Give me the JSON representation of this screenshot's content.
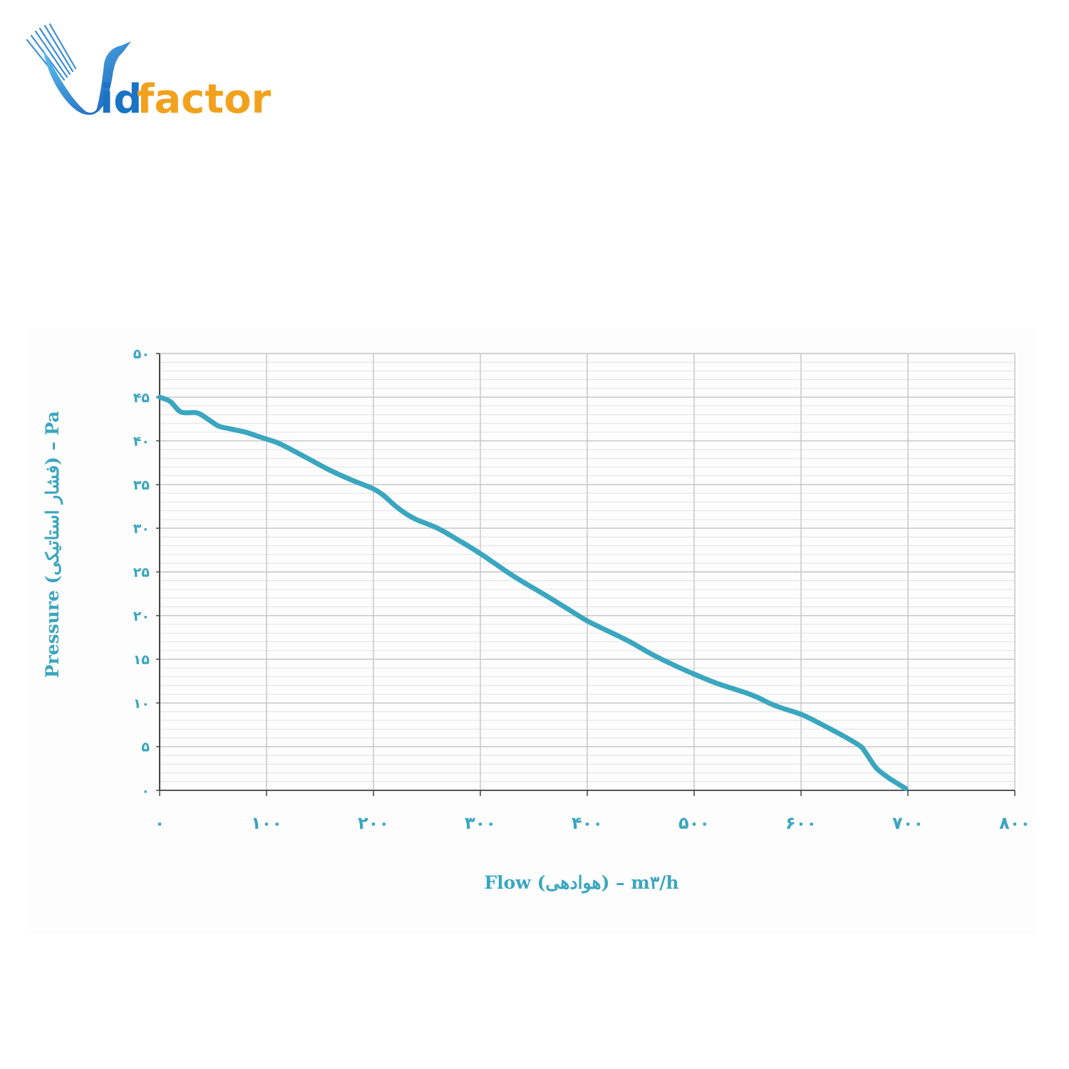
{
  "logo": {
    "text_v": "V",
    "text_id": "id",
    "text_factor": "factor",
    "colors": {
      "blue": "#1a73c4",
      "orange": "#f2a11c"
    }
  },
  "chart_data": {
    "type": "line",
    "title": "",
    "xlabel": "Flow (هوادهی) – m۳/h",
    "ylabel": "Pressure (فشار استاتیکی) – Pa",
    "xlim": [
      0,
      800
    ],
    "ylim": [
      0,
      50
    ],
    "x_ticks": [
      {
        "value": 0,
        "label": "۰"
      },
      {
        "value": 100,
        "label": "۱۰۰"
      },
      {
        "value": 200,
        "label": "۲۰۰"
      },
      {
        "value": 300,
        "label": "۳۰۰"
      },
      {
        "value": 400,
        "label": "۴۰۰"
      },
      {
        "value": 500,
        "label": "۵۰۰"
      },
      {
        "value": 600,
        "label": "۶۰۰"
      },
      {
        "value": 700,
        "label": "۷۰۰"
      },
      {
        "value": 800,
        "label": "۸۰۰"
      }
    ],
    "y_ticks": [
      {
        "value": 0,
        "label": "۰"
      },
      {
        "value": 5,
        "label": "۵"
      },
      {
        "value": 10,
        "label": "۱۰"
      },
      {
        "value": 15,
        "label": "۱۵"
      },
      {
        "value": 20,
        "label": "۲۰"
      },
      {
        "value": 25,
        "label": "۲۵"
      },
      {
        "value": 30,
        "label": "۳۰"
      },
      {
        "value": 35,
        "label": "۳۵"
      },
      {
        "value": 40,
        "label": "۴۰"
      },
      {
        "value": 45,
        "label": "۴۵"
      },
      {
        "value": 50,
        "label": "۵۰"
      }
    ],
    "grid": true,
    "minor_y_step": 1,
    "series": [
      {
        "color": "#3aa6bf",
        "x": [
          0,
          10,
          20,
          35,
          45,
          55,
          65,
          80,
          90,
          100,
          110,
          120,
          140,
          160,
          180,
          200,
          210,
          220,
          230,
          240,
          260,
          280,
          300,
          330,
          360,
          380,
          400,
          420,
          440,
          460,
          480,
          500,
          520,
          540,
          550,
          560,
          570,
          580,
          600,
          620,
          640,
          655,
          660,
          670,
          680,
          690,
          698
        ],
        "y": [
          45.0,
          44.5,
          43.3,
          43.2,
          42.5,
          41.7,
          41.4,
          41.0,
          40.6,
          40.2,
          39.8,
          39.2,
          37.9,
          36.6,
          35.5,
          34.5,
          33.7,
          32.6,
          31.7,
          31.0,
          30.0,
          28.6,
          27.1,
          24.6,
          22.4,
          20.9,
          19.4,
          18.2,
          17.0,
          15.6,
          14.4,
          13.3,
          12.3,
          11.5,
          11.1,
          10.6,
          10.0,
          9.5,
          8.7,
          7.5,
          6.2,
          5.1,
          4.4,
          2.6,
          1.6,
          0.8,
          0.2
        ]
      }
    ]
  }
}
